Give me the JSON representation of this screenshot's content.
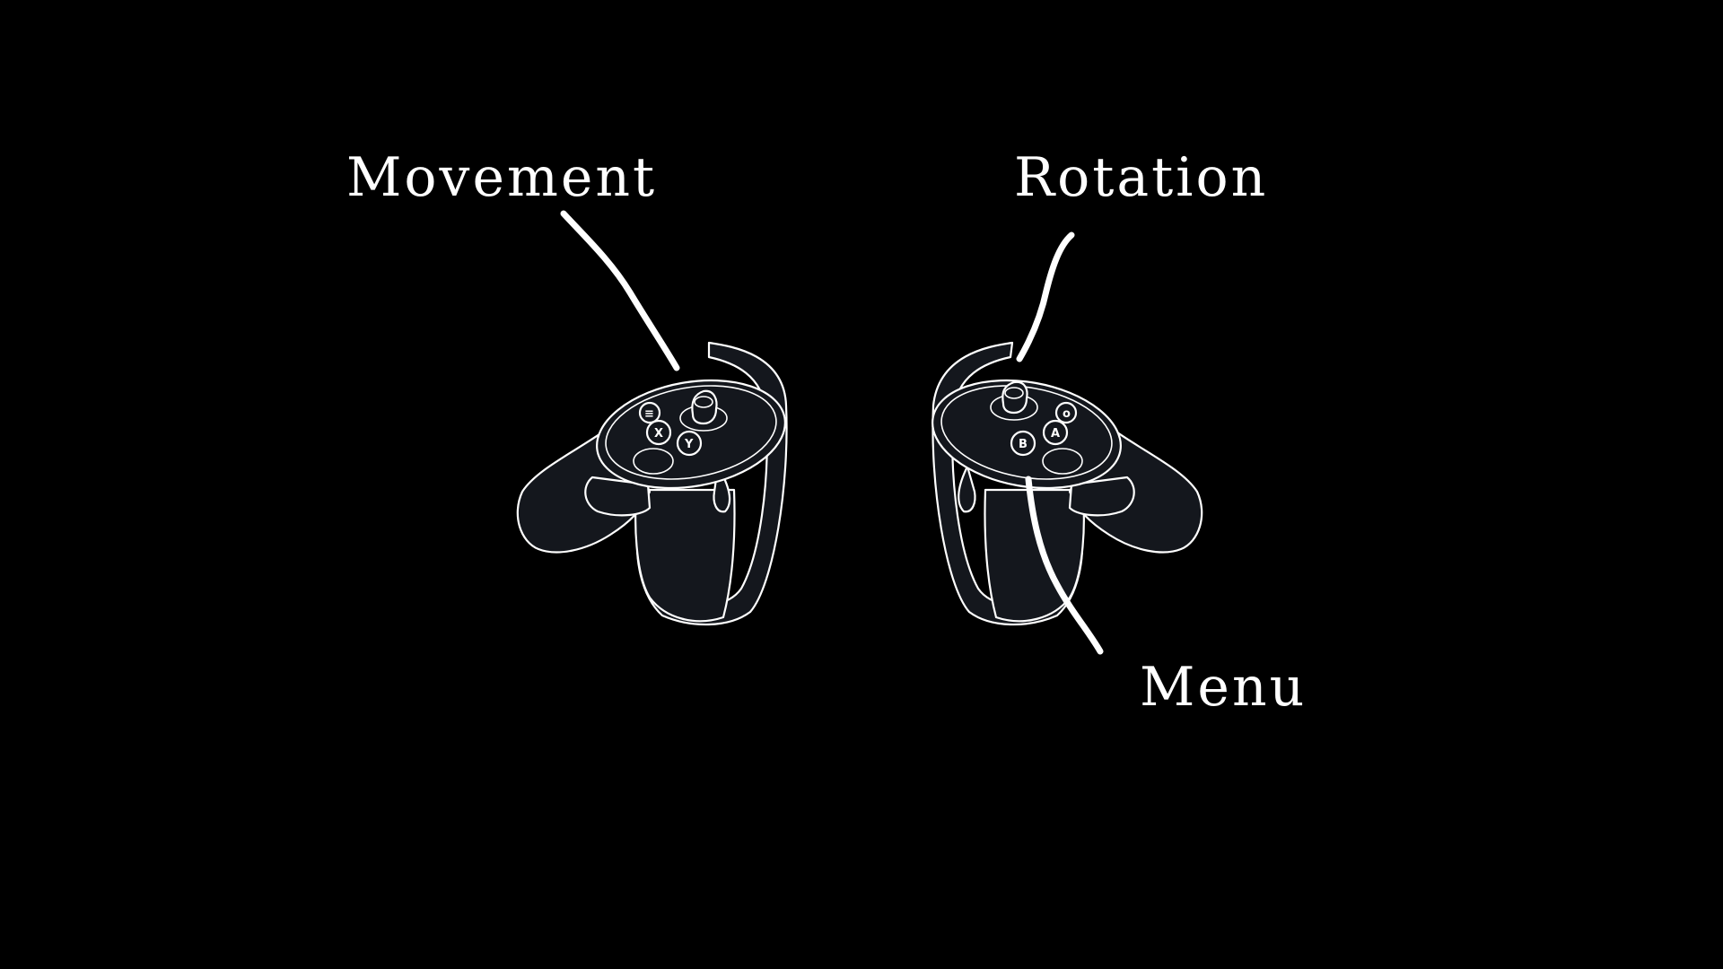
{
  "labels": {
    "movement": "Movement",
    "rotation": "Rotation",
    "menu": "Menu"
  },
  "left_controller": {
    "button_glyphs": [
      "≡",
      "Y",
      "X"
    ]
  },
  "right_controller": {
    "button_glyphs": [
      "B",
      "A",
      "o"
    ]
  },
  "colors": {
    "background": "#000000",
    "controller_fill": "#14171d",
    "outline": "#ffffff",
    "text": "#ffffff"
  },
  "icons": {
    "left": "left-touch-controller-icon",
    "right": "right-touch-controller-icon"
  }
}
